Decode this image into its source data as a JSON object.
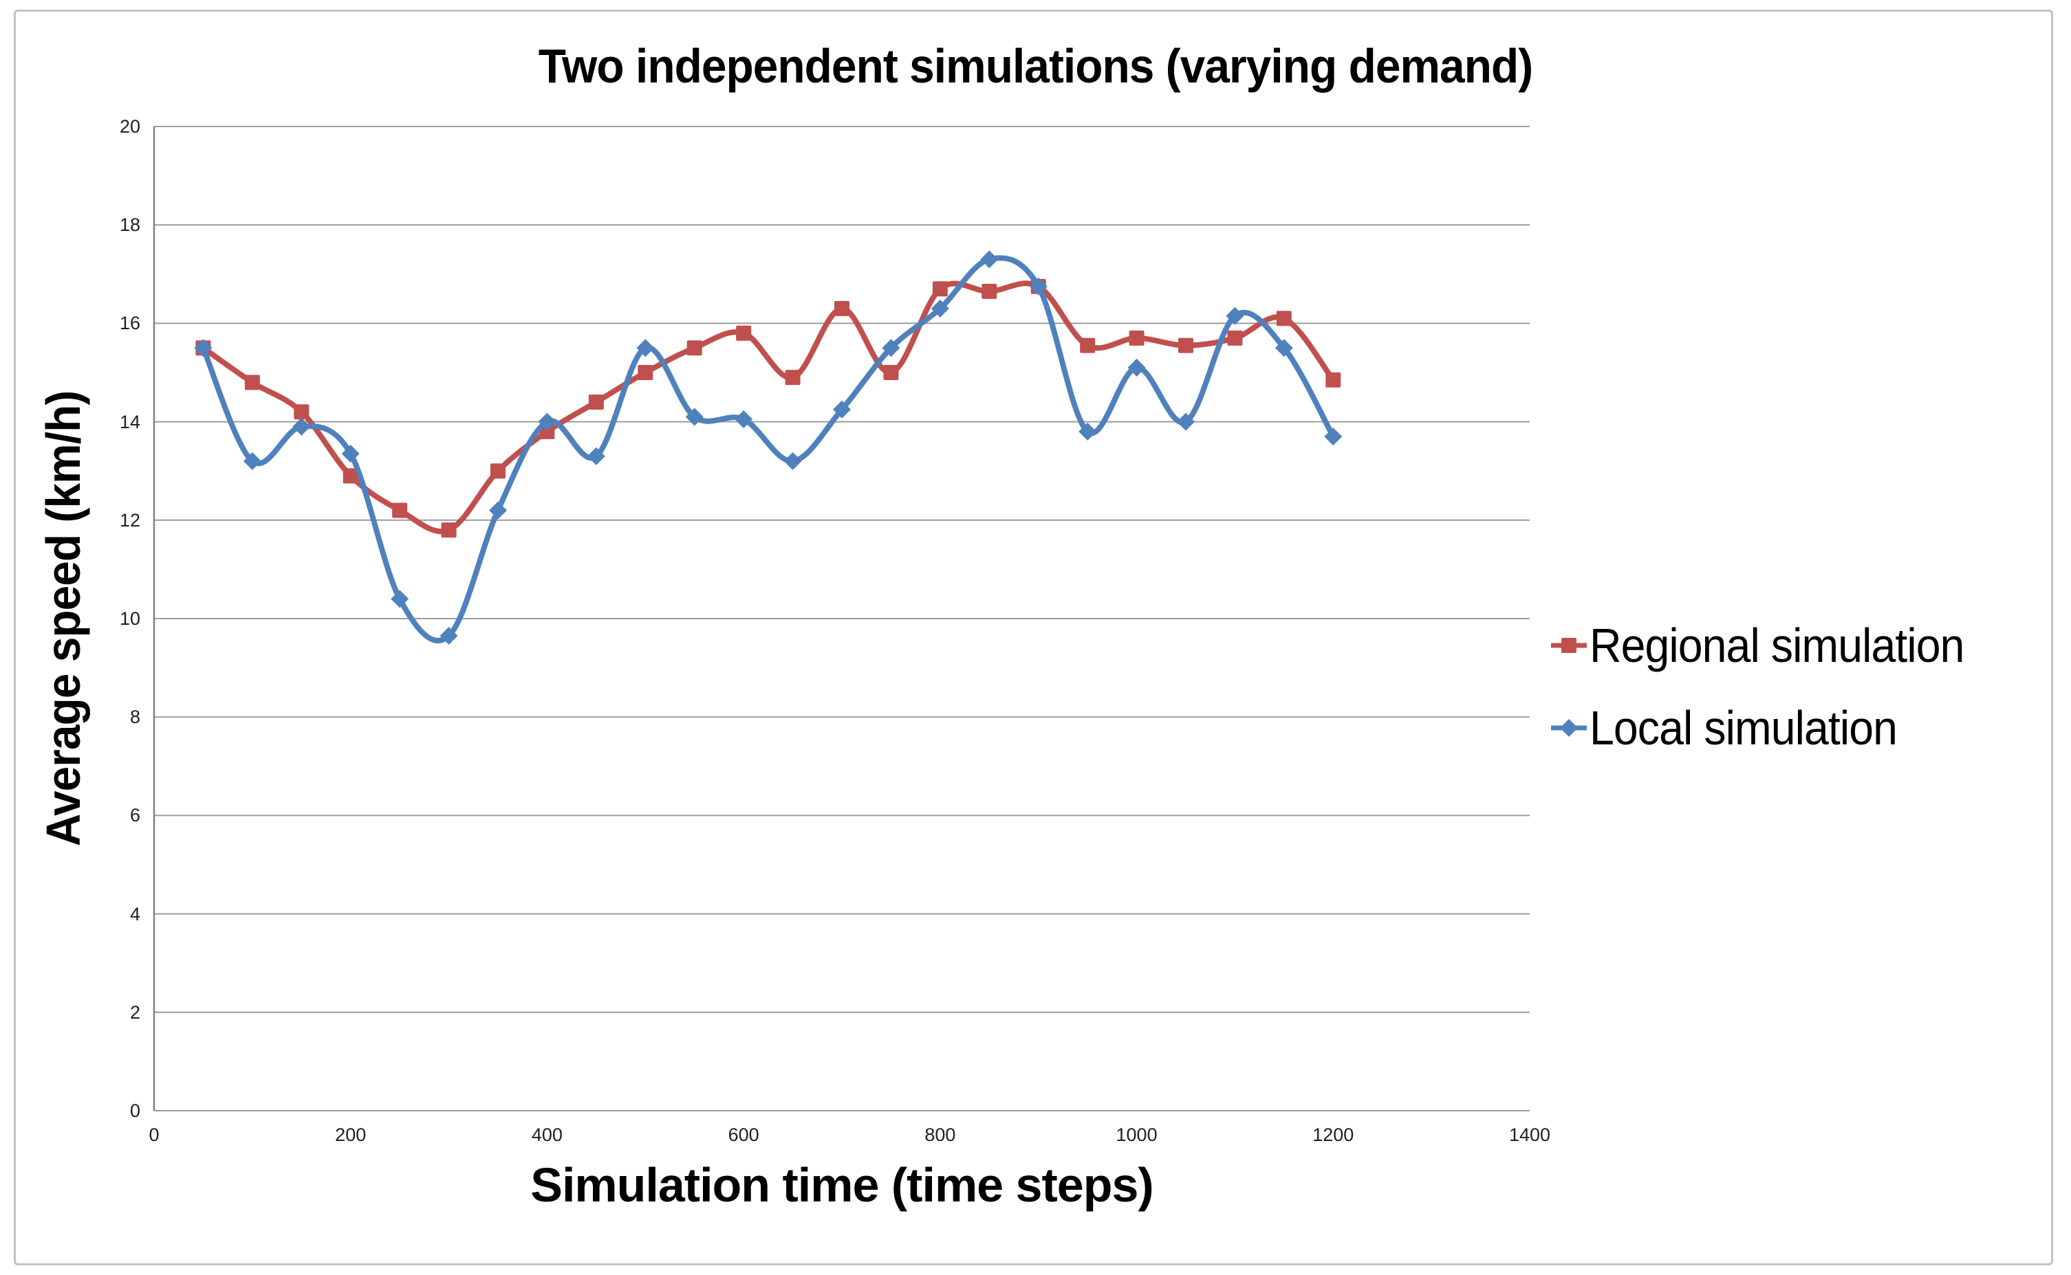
{
  "chart_data": {
    "type": "line",
    "title": "Two independent simulations (varying demand)",
    "xlabel": "Simulation time (time steps)",
    "ylabel": "Average speed (km/h)",
    "xlim": [
      0,
      1400
    ],
    "ylim": [
      0,
      20
    ],
    "x_ticks": [
      0,
      200,
      400,
      600,
      800,
      1000,
      1200,
      1400
    ],
    "y_ticks": [
      0,
      2,
      4,
      6,
      8,
      10,
      12,
      14,
      16,
      18,
      20
    ],
    "grid": "horizontal",
    "legend_position": "right",
    "smoothed_lines": true,
    "x": [
      50,
      100,
      150,
      200,
      250,
      300,
      350,
      400,
      450,
      500,
      550,
      600,
      650,
      700,
      750,
      800,
      850,
      900,
      950,
      1000,
      1050,
      1100,
      1150,
      1200
    ],
    "series": [
      {
        "name": "Regional simulation",
        "color": "#C0504D",
        "marker": "square",
        "values": [
          15.5,
          14.8,
          14.2,
          12.9,
          12.2,
          11.8,
          13.0,
          13.8,
          14.4,
          15.0,
          15.5,
          15.8,
          14.9,
          16.3,
          15.0,
          16.7,
          16.65,
          16.75,
          15.55,
          15.7,
          15.55,
          15.7,
          16.1,
          14.85
        ]
      },
      {
        "name": "Local simulation",
        "color": "#4F81BD",
        "marker": "diamond",
        "values": [
          15.5,
          13.2,
          13.9,
          13.35,
          10.4,
          9.65,
          12.2,
          14.0,
          13.3,
          15.5,
          14.1,
          14.05,
          13.2,
          14.25,
          15.5,
          16.3,
          17.3,
          16.75,
          13.8,
          15.1,
          14.0,
          16.15,
          15.5,
          13.7
        ]
      }
    ],
    "gridline_color": "#9c9c9c",
    "axis_line_color": "#808080"
  }
}
